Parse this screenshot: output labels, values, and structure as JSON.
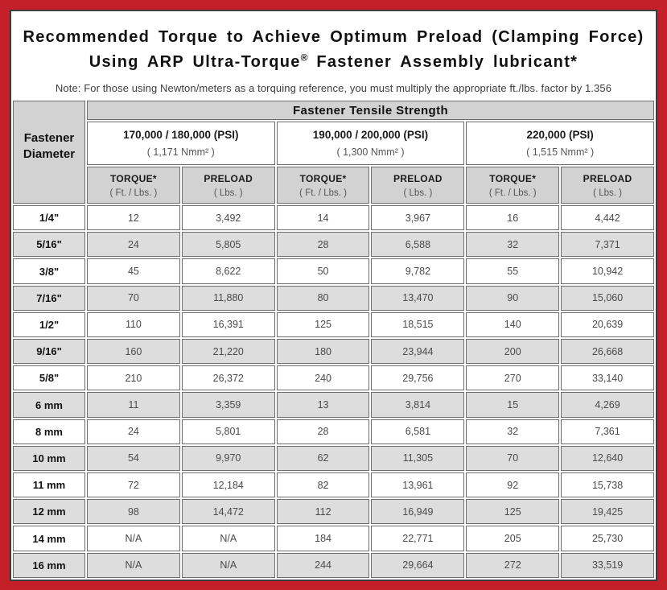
{
  "colors": {
    "frame_red": "#c5202a",
    "frame_border": "#3c3c3c",
    "cell_border": "#6e6e6e",
    "header_gray": "#d2d2d2",
    "stripe_gray": "#dddddd",
    "data_text": "#4a4a4a"
  },
  "page": {
    "title_line1": "Recommended Torque to Achieve Optimum Preload (Clamping Force)",
    "title_line2_pre": "Using ARP Ultra-Torque",
    "title_line2_sup": "®",
    "title_line2_post": " Fastener Assembly lubricant*",
    "note": "Note: For those using Newton/meters as a torquing reference, you must multiply the appropriate ft./lbs. factor by 1.356"
  },
  "table": {
    "corner_line1": "Fastener",
    "corner_line2": "Diameter",
    "group_header": "Fastener Tensile Strength",
    "strength_groups": [
      {
        "psi": "170,000 / 180,000 (PSI)",
        "nmm": "( 1,171 Nmm² )"
      },
      {
        "psi": "190,000 / 200,000 (PSI)",
        "nmm": "( 1,300 Nmm² )"
      },
      {
        "psi": "220,000 (PSI)",
        "nmm": "( 1,515 Nmm² )"
      }
    ],
    "subheaders": [
      {
        "label": "TORQUE*",
        "unit": "( Ft. / Lbs. )"
      },
      {
        "label": "PRELOAD",
        "unit": "( Lbs. )"
      },
      {
        "label": "TORQUE*",
        "unit": "( Ft. / Lbs. )"
      },
      {
        "label": "PRELOAD",
        "unit": "( Lbs. )"
      },
      {
        "label": "TORQUE*",
        "unit": "( Ft. / Lbs. )"
      },
      {
        "label": "PRELOAD",
        "unit": "( Lbs. )"
      }
    ],
    "rows": [
      {
        "diameter": "1/4\"",
        "values": [
          "12",
          "3,492",
          "14",
          "3,967",
          "16",
          "4,442"
        ]
      },
      {
        "diameter": "5/16\"",
        "values": [
          "24",
          "5,805",
          "28",
          "6,588",
          "32",
          "7,371"
        ]
      },
      {
        "diameter": "3/8\"",
        "values": [
          "45",
          "8,622",
          "50",
          "9,782",
          "55",
          "10,942"
        ]
      },
      {
        "diameter": "7/16\"",
        "values": [
          "70",
          "11,880",
          "80",
          "13,470",
          "90",
          "15,060"
        ]
      },
      {
        "diameter": "1/2\"",
        "values": [
          "110",
          "16,391",
          "125",
          "18,515",
          "140",
          "20,639"
        ]
      },
      {
        "diameter": "9/16\"",
        "values": [
          "160",
          "21,220",
          "180",
          "23,944",
          "200",
          "26,668"
        ]
      },
      {
        "diameter": "5/8\"",
        "values": [
          "210",
          "26,372",
          "240",
          "29,756",
          "270",
          "33,140"
        ]
      },
      {
        "diameter": "6 mm",
        "values": [
          "11",
          "3,359",
          "13",
          "3,814",
          "15",
          "4,269"
        ]
      },
      {
        "diameter": "8 mm",
        "values": [
          "24",
          "5,801",
          "28",
          "6,581",
          "32",
          "7,361"
        ]
      },
      {
        "diameter": "10 mm",
        "values": [
          "54",
          "9,970",
          "62",
          "11,305",
          "70",
          "12,640"
        ]
      },
      {
        "diameter": "11 mm",
        "values": [
          "72",
          "12,184",
          "82",
          "13,961",
          "92",
          "15,738"
        ]
      },
      {
        "diameter": "12 mm",
        "values": [
          "98",
          "14,472",
          "112",
          "16,949",
          "125",
          "19,425"
        ]
      },
      {
        "diameter": "14 mm",
        "values": [
          "N/A",
          "N/A",
          "184",
          "22,771",
          "205",
          "25,730"
        ]
      },
      {
        "diameter": "16 mm",
        "values": [
          "N/A",
          "N/A",
          "244",
          "29,664",
          "272",
          "33,519"
        ]
      }
    ]
  },
  "chart_data": {
    "type": "table",
    "title": "Recommended Torque to Achieve Optimum Preload (Clamping Force) Using ARP Ultra-Torque® Fastener Assembly lubricant*",
    "note": "Note: For those using Newton/meters as a torquing reference, you must multiply the appropriate ft./lbs. factor by 1.356",
    "column_groups": [
      "Fastener Tensile Strength 170,000 / 180,000 (PSI) ( 1,171 Nmm² )",
      "Fastener Tensile Strength 190,000 / 200,000 (PSI) ( 1,300 Nmm² )",
      "Fastener Tensile Strength 220,000 (PSI) ( 1,515 Nmm² )"
    ],
    "columns": [
      "Fastener Diameter",
      "TORQUE* ( Ft. / Lbs. ) @ 170,000/180,000 PSI",
      "PRELOAD ( Lbs. ) @ 170,000/180,000 PSI",
      "TORQUE* ( Ft. / Lbs. ) @ 190,000/200,000 PSI",
      "PRELOAD ( Lbs. ) @ 190,000/200,000 PSI",
      "TORQUE* ( Ft. / Lbs. ) @ 220,000 PSI",
      "PRELOAD ( Lbs. ) @ 220,000 PSI"
    ],
    "rows": [
      [
        "1/4\"",
        12,
        3492,
        14,
        3967,
        16,
        4442
      ],
      [
        "5/16\"",
        24,
        5805,
        28,
        6588,
        32,
        7371
      ],
      [
        "3/8\"",
        45,
        8622,
        50,
        9782,
        55,
        10942
      ],
      [
        "7/16\"",
        70,
        11880,
        80,
        13470,
        90,
        15060
      ],
      [
        "1/2\"",
        110,
        16391,
        125,
        18515,
        140,
        20639
      ],
      [
        "9/16\"",
        160,
        21220,
        180,
        23944,
        200,
        26668
      ],
      [
        "5/8\"",
        210,
        26372,
        240,
        29756,
        270,
        33140
      ],
      [
        "6 mm",
        11,
        3359,
        13,
        3814,
        15,
        4269
      ],
      [
        "8 mm",
        24,
        5801,
        28,
        6581,
        32,
        7361
      ],
      [
        "10 mm",
        54,
        9970,
        62,
        11305,
        70,
        12640
      ],
      [
        "11 mm",
        72,
        12184,
        82,
        13961,
        92,
        15738
      ],
      [
        "12 mm",
        98,
        14472,
        112,
        16949,
        125,
        19425
      ],
      [
        "14 mm",
        "N/A",
        "N/A",
        184,
        22771,
        205,
        25730
      ],
      [
        "16 mm",
        "N/A",
        "N/A",
        244,
        29664,
        272,
        33519
      ]
    ]
  }
}
